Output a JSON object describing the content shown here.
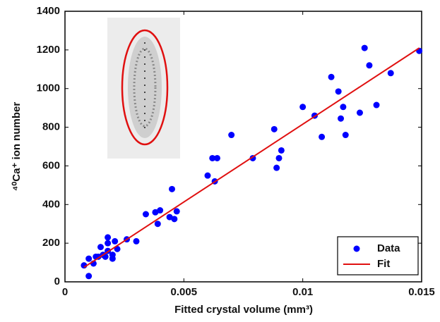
{
  "chart_data": {
    "type": "scatter",
    "xlabel": "Fitted crystal volume (mm³)",
    "ylabel": "⁴⁰Ca⁺ ion number",
    "xlim": [
      0,
      0.015
    ],
    "xticks": [
      0,
      0.005,
      0.01,
      0.015
    ],
    "ylim": [
      0,
      1400
    ],
    "yticks": [
      0,
      200,
      400,
      600,
      800,
      1000,
      1200,
      1400
    ],
    "legend": "lower right",
    "series": [
      {
        "name": "Data",
        "type": "scatter",
        "color": "#0000ff",
        "x": [
          0.0008,
          0.001,
          0.001,
          0.0012,
          0.0013,
          0.0014,
          0.0015,
          0.0016,
          0.0017,
          0.0018,
          0.0018,
          0.0018,
          0.002,
          0.002,
          0.0021,
          0.0022,
          0.0026,
          0.003,
          0.0034,
          0.0038,
          0.0039,
          0.004,
          0.0044,
          0.0045,
          0.0046,
          0.0047,
          0.006,
          0.0062,
          0.0063,
          0.0064,
          0.007,
          0.0079,
          0.0088,
          0.0089,
          0.009,
          0.0091,
          0.01,
          0.0105,
          0.0108,
          0.0112,
          0.0115,
          0.0116,
          0.0117,
          0.0118,
          0.0124,
          0.0126,
          0.0128,
          0.0131,
          0.0137,
          0.0149
        ],
        "values": [
          85,
          30,
          120,
          95,
          130,
          130,
          180,
          140,
          130,
          160,
          200,
          230,
          120,
          140,
          210,
          170,
          220,
          210,
          350,
          360,
          300,
          370,
          335,
          480,
          325,
          365,
          550,
          640,
          520,
          640,
          760,
          640,
          790,
          590,
          640,
          680,
          905,
          860,
          750,
          1060,
          985,
          845,
          905,
          760,
          875,
          1210,
          1120,
          915,
          1080,
          1195
        ]
      },
      {
        "name": "Fit",
        "type": "line",
        "color": "#e01010",
        "x": [
          0.0008,
          0.0149
        ],
        "values": [
          75,
          1210
        ]
      }
    ]
  }
}
